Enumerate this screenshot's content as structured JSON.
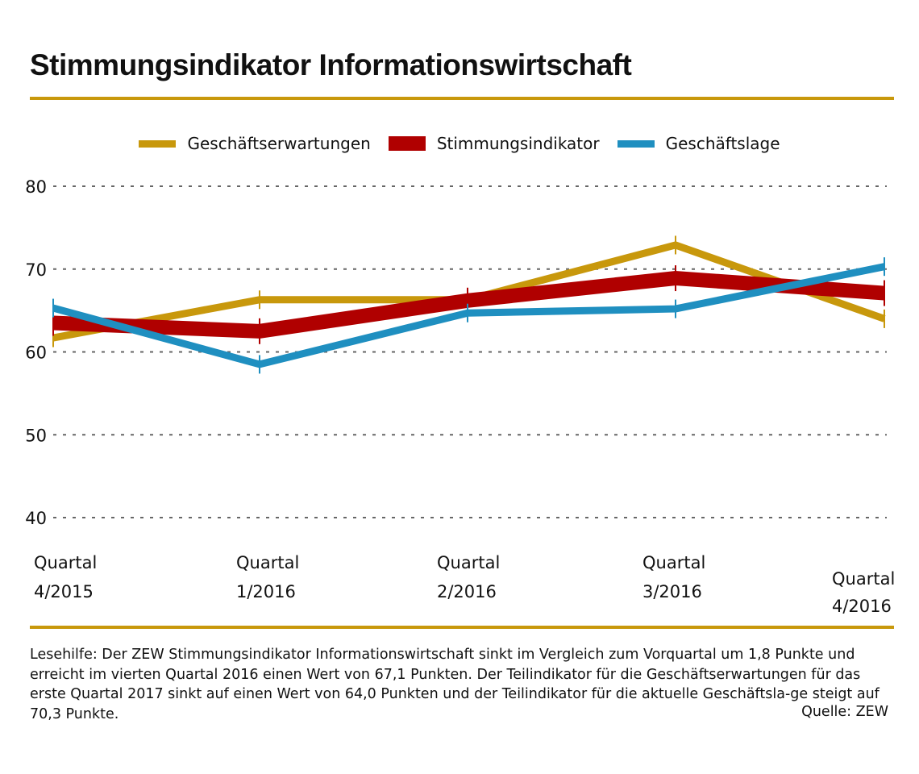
{
  "title": "Stimmungsindikator Informationswirtschaft",
  "chart_data": {
    "type": "line",
    "title": "Stimmungsindikator Informationswirtschaft",
    "categories": [
      "Quartal 4/2015",
      "Quartal 1/2016",
      "Quartal 2/2016",
      "Quartal 3/2016",
      "Quartal 4/2016"
    ],
    "category_lines": [
      [
        "Quartal",
        "4/2015"
      ],
      [
        "Quartal",
        "1/2016"
      ],
      [
        "Quartal",
        "2/2016"
      ],
      [
        "Quartal",
        "3/2016"
      ],
      [
        "Quartal",
        "4/2016"
      ]
    ],
    "ylim": [
      40,
      80
    ],
    "yticks": [
      80,
      70,
      60,
      50,
      40
    ],
    "grid": "horizontal dotted",
    "legend_placement": "top-center",
    "series": [
      {
        "name": "Geschäftserwartungen",
        "color": "#c8980c",
        "values": [
          61.7,
          66.3,
          66.3,
          72.9,
          64.0
        ]
      },
      {
        "name": "Stimmungsindikator",
        "color": "#b00000",
        "values": [
          63.5,
          62.5,
          66.2,
          68.9,
          67.1
        ]
      },
      {
        "name": "Geschäftslage",
        "color": "#1f8fc0",
        "values": [
          65.3,
          58.5,
          64.7,
          65.2,
          70.3
        ]
      }
    ]
  },
  "note": "Lesehilfe: Der ZEW Stimmungsindikator Informationswirtschaft sinkt im Vergleich zum Vorquartal um 1,8 Punkte und erreicht im vierten Quartal 2016 einen Wert von 67,1 Punkten. Der Teilindikator für die Geschäftserwartungen für das erste Quartal 2017 sinkt auf einen Wert von 64,0 Punkten und der Teilindikator für die aktuelle Geschäftsla-ge steigt auf 70,3 Punkte.",
  "source": "Quelle: ZEW"
}
